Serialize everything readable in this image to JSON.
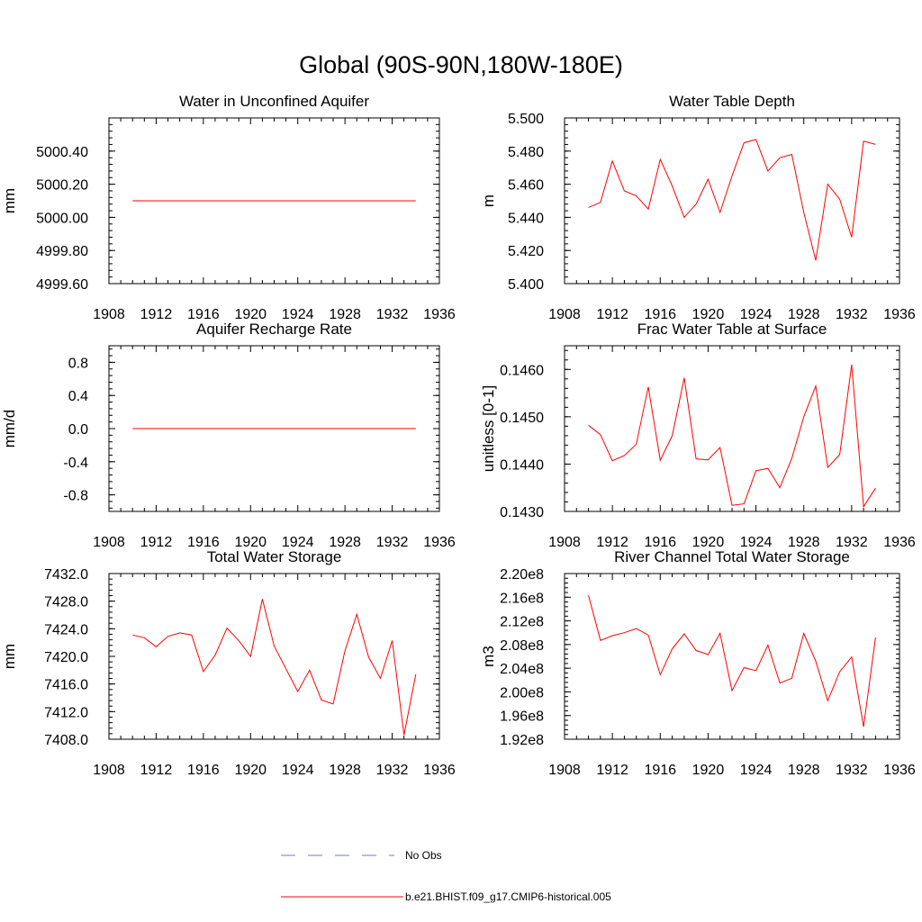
{
  "page_title": "Global (90S-90N,180W-180E)",
  "colors": {
    "model": "#ff0000",
    "obs": "#6f7fb6",
    "axis": "#000000"
  },
  "legend": {
    "entries": [
      {
        "label": "No Obs",
        "style": "dashed",
        "color": "#6f7fb6"
      },
      {
        "label": "b.e21.BHIST.f09_g17.CMIP6-historical.005",
        "style": "solid",
        "color": "#ff0000"
      }
    ]
  },
  "chart_data": [
    {
      "id": "unconfined-aquifer",
      "type": "line",
      "title": "Water in Unconfined Aquifer",
      "ylabel": "mm",
      "xlim": [
        1908,
        1936
      ],
      "x_ticks": [
        "1908",
        "1912",
        "1916",
        "1920",
        "1924",
        "1928",
        "1932",
        "1936"
      ],
      "ylim": [
        4999.6,
        5000.6
      ],
      "y_ticks": [
        {
          "value": 4999.6,
          "label": "4999.60"
        },
        {
          "value": 4999.8,
          "label": "4999.80"
        },
        {
          "value": 5000.0,
          "label": "5000.00"
        },
        {
          "value": 5000.2,
          "label": "5000.20"
        },
        {
          "value": 5000.4,
          "label": "5000.40"
        }
      ],
      "series": [
        {
          "x": [
            1910,
            1911,
            1912,
            1913,
            1914,
            1915,
            1916,
            1917,
            1918,
            1919,
            1920,
            1921,
            1922,
            1923,
            1924,
            1925,
            1926,
            1927,
            1928,
            1929,
            1930,
            1931,
            1932,
            1933,
            1934
          ],
          "y": [
            5000.1,
            5000.1,
            5000.1,
            5000.1,
            5000.1,
            5000.1,
            5000.1,
            5000.1,
            5000.1,
            5000.1,
            5000.1,
            5000.1,
            5000.1,
            5000.1,
            5000.1,
            5000.1,
            5000.1,
            5000.1,
            5000.1,
            5000.1,
            5000.1,
            5000.1,
            5000.1,
            5000.1,
            5000.1
          ]
        }
      ]
    },
    {
      "id": "water-table-depth",
      "type": "line",
      "title": "Water Table Depth",
      "ylabel": "m",
      "xlim": [
        1908,
        1936
      ],
      "x_ticks": [
        "1908",
        "1912",
        "1916",
        "1920",
        "1924",
        "1928",
        "1932",
        "1936"
      ],
      "ylim": [
        5.4,
        5.5
      ],
      "y_ticks": [
        {
          "value": 5.4,
          "label": "5.400"
        },
        {
          "value": 5.42,
          "label": "5.420"
        },
        {
          "value": 5.44,
          "label": "5.440"
        },
        {
          "value": 5.46,
          "label": "5.460"
        },
        {
          "value": 5.48,
          "label": "5.480"
        },
        {
          "value": 5.5,
          "label": "5.500"
        }
      ],
      "series": [
        {
          "x": [
            1910,
            1911,
            1912,
            1913,
            1914,
            1915,
            1916,
            1917,
            1918,
            1919,
            1920,
            1921,
            1922,
            1923,
            1924,
            1925,
            1926,
            1927,
            1928,
            1929,
            1930,
            1931,
            1932,
            1933,
            1934
          ],
          "y": [
            5.446,
            5.449,
            5.474,
            5.456,
            5.453,
            5.445,
            5.475,
            5.459,
            5.44,
            5.448,
            5.463,
            5.443,
            5.465,
            5.485,
            5.487,
            5.468,
            5.476,
            5.478,
            5.443,
            5.414,
            5.46,
            5.451,
            5.428,
            5.486,
            5.484
          ]
        }
      ]
    },
    {
      "id": "aquifer-recharge",
      "type": "line",
      "title": "Aquifer Recharge Rate",
      "ylabel": "mm/d",
      "xlim": [
        1908,
        1936
      ],
      "x_ticks": [
        "1908",
        "1912",
        "1916",
        "1920",
        "1924",
        "1928",
        "1932",
        "1936"
      ],
      "ylim": [
        -1.0,
        1.0
      ],
      "y_ticks": [
        {
          "value": -0.8,
          "label": "-0.8"
        },
        {
          "value": -0.4,
          "label": "-0.4"
        },
        {
          "value": 0.0,
          "label": "0.0"
        },
        {
          "value": 0.4,
          "label": "0.4"
        },
        {
          "value": 0.8,
          "label": "0.8"
        }
      ],
      "series": [
        {
          "x": [
            1910,
            1911,
            1912,
            1913,
            1914,
            1915,
            1916,
            1917,
            1918,
            1919,
            1920,
            1921,
            1922,
            1923,
            1924,
            1925,
            1926,
            1927,
            1928,
            1929,
            1930,
            1931,
            1932,
            1933,
            1934
          ],
          "y": [
            0,
            0,
            0,
            0,
            0,
            0,
            0,
            0,
            0,
            0,
            0,
            0,
            0,
            0,
            0,
            0,
            0,
            0,
            0,
            0,
            0,
            0,
            0,
            0,
            0
          ]
        }
      ]
    },
    {
      "id": "frac-water-table",
      "type": "line",
      "title": "Frac Water Table at Surface",
      "ylabel": "unitless [0-1]",
      "xlim": [
        1908,
        1936
      ],
      "x_ticks": [
        "1908",
        "1912",
        "1916",
        "1920",
        "1924",
        "1928",
        "1932",
        "1936"
      ],
      "ylim": [
        0.143,
        0.1465
      ],
      "y_ticks": [
        {
          "value": 0.143,
          "label": "0.1430"
        },
        {
          "value": 0.144,
          "label": "0.1440"
        },
        {
          "value": 0.145,
          "label": "0.1450"
        },
        {
          "value": 0.146,
          "label": "0.1460"
        }
      ],
      "series": [
        {
          "x": [
            1910,
            1911,
            1912,
            1913,
            1914,
            1915,
            1916,
            1917,
            1918,
            1919,
            1920,
            1921,
            1922,
            1923,
            1924,
            1925,
            1926,
            1927,
            1928,
            1929,
            1930,
            1931,
            1932,
            1933,
            1934
          ],
          "y": [
            0.14482,
            0.14462,
            0.14407,
            0.14418,
            0.14442,
            0.14563,
            0.14408,
            0.1446,
            0.14582,
            0.14411,
            0.14409,
            0.14435,
            0.14313,
            0.14316,
            0.14386,
            0.14391,
            0.1435,
            0.14412,
            0.145,
            0.14565,
            0.14393,
            0.1442,
            0.1461,
            0.1431,
            0.14349
          ]
        }
      ]
    },
    {
      "id": "total-water-storage",
      "type": "line",
      "title": "Total Water Storage",
      "ylabel": "mm",
      "xlim": [
        1908,
        1936
      ],
      "x_ticks": [
        "1908",
        "1912",
        "1916",
        "1920",
        "1924",
        "1928",
        "1932",
        "1936"
      ],
      "ylim": [
        7408,
        7432
      ],
      "y_ticks": [
        {
          "value": 7408,
          "label": "7408.0"
        },
        {
          "value": 7412,
          "label": "7412.0"
        },
        {
          "value": 7416,
          "label": "7416.0"
        },
        {
          "value": 7420,
          "label": "7420.0"
        },
        {
          "value": 7424,
          "label": "7424.0"
        },
        {
          "value": 7428,
          "label": "7428.0"
        },
        {
          "value": 7432,
          "label": "7432.0"
        }
      ],
      "series": [
        {
          "x": [
            1910,
            1911,
            1912,
            1913,
            1914,
            1915,
            1916,
            1917,
            1918,
            1919,
            1920,
            1921,
            1922,
            1923,
            1924,
            1925,
            1926,
            1927,
            1928,
            1929,
            1930,
            1931,
            1932,
            1933,
            1934
          ],
          "y": [
            7423.1,
            7422.7,
            7421.4,
            7422.9,
            7423.4,
            7423.1,
            7417.8,
            7420.2,
            7424.1,
            7422.3,
            7420.0,
            7428.3,
            7421.5,
            7418.2,
            7414.9,
            7418.0,
            7413.7,
            7413.1,
            7420.8,
            7426.1,
            7419.9,
            7416.8,
            7422.3,
            7408.6,
            7417.4
          ]
        }
      ]
    },
    {
      "id": "river-channel-storage",
      "type": "line",
      "title": "River Channel Total Water Storage",
      "ylabel": "m3",
      "xlim": [
        1908,
        1936
      ],
      "x_ticks": [
        "1908",
        "1912",
        "1916",
        "1920",
        "1924",
        "1928",
        "1932",
        "1936"
      ],
      "ylim": [
        192000000,
        220000000
      ],
      "y_ticks": [
        {
          "value": 192000000,
          "label": "1.92e8"
        },
        {
          "value": 196000000,
          "label": "1.96e8"
        },
        {
          "value": 200000000,
          "label": "2.00e8"
        },
        {
          "value": 204000000,
          "label": "2.04e8"
        },
        {
          "value": 208000000,
          "label": "2.08e8"
        },
        {
          "value": 212000000,
          "label": "2.12e8"
        },
        {
          "value": 216000000,
          "label": "2.16e8"
        },
        {
          "value": 220000000,
          "label": "2.20e8"
        }
      ],
      "series": [
        {
          "x": [
            1910,
            1911,
            1912,
            1913,
            1914,
            1915,
            1916,
            1917,
            1918,
            1919,
            1920,
            1921,
            1922,
            1923,
            1924,
            1925,
            1926,
            1927,
            1928,
            1929,
            1930,
            1931,
            1932,
            1933,
            1934
          ],
          "y": [
            216300000,
            208700000,
            209500000,
            210000000,
            210700000,
            209600000,
            202900000,
            207300000,
            209800000,
            207000000,
            206300000,
            209900000,
            200200000,
            204100000,
            203600000,
            207900000,
            201500000,
            202300000,
            209900000,
            205200000,
            198500000,
            203400000,
            205900000,
            194100000,
            209200000
          ]
        }
      ]
    }
  ]
}
